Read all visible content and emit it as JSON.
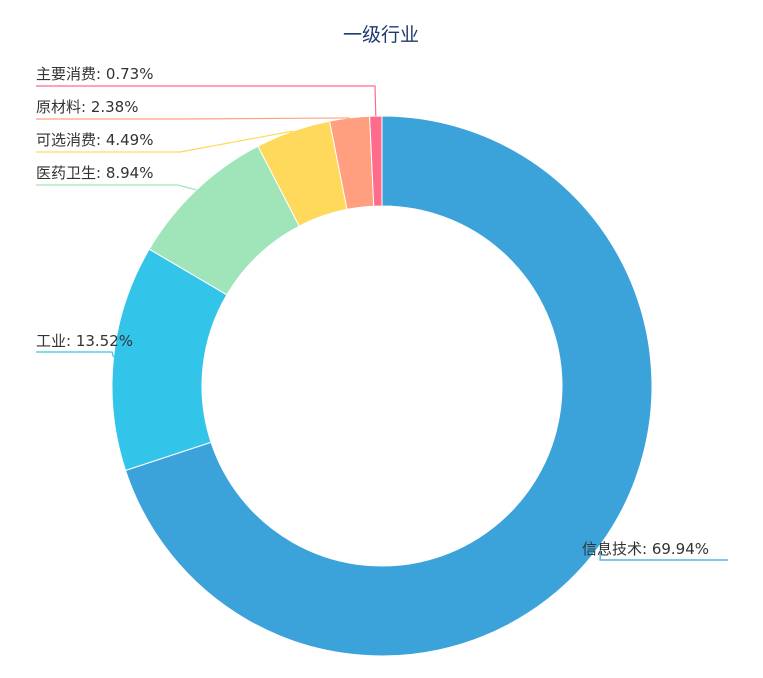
{
  "chart_data": {
    "type": "pie",
    "variant": "donut",
    "title": "一级行业",
    "slices": [
      {
        "label": "信息技术",
        "value": 69.94,
        "display": "信息技术: 69.94%",
        "color": "#3ba2da"
      },
      {
        "label": "工业",
        "value": 13.52,
        "display": "工业: 13.52%",
        "color": "#33c4ea"
      },
      {
        "label": "医药卫生",
        "value": 8.94,
        "display": "医药卫生: 8.94%",
        "color": "#a0e5b9"
      },
      {
        "label": "可选消费",
        "value": 4.49,
        "display": "可选消费: 4.49%",
        "color": "#ffd95c"
      },
      {
        "label": "原材料",
        "value": 2.38,
        "display": "原材料: 2.38%",
        "color": "#ff9f7f"
      },
      {
        "label": "主要消费",
        "value": 0.73,
        "display": "主要消费: 0.73%",
        "color": "#ff6b8a"
      }
    ]
  }
}
